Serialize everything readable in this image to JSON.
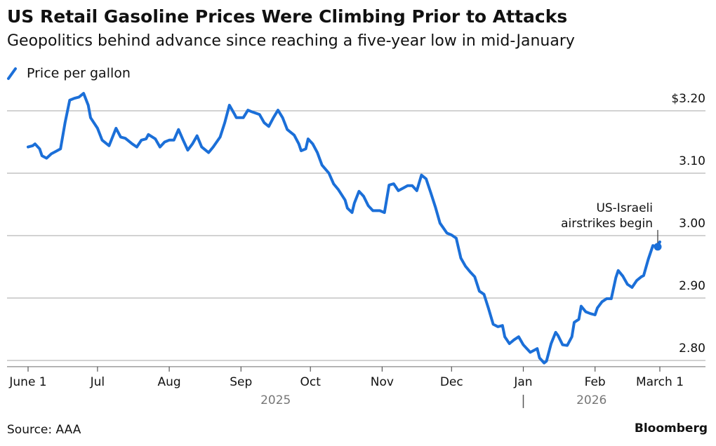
{
  "chart_data": {
    "type": "line",
    "title": "US Retail Gasoline Prices Were Climbing Prior to Attacks",
    "subtitle": "Geopolitics behind advance since reaching a five-year low in mid-January",
    "source": "Source: AAA",
    "brand": "Bloomberg",
    "annotation": [
      "US-Israeli",
      "airstrikes begin"
    ],
    "year_labels": [
      "2025",
      "2026"
    ],
    "grid": true,
    "legend": "top-left",
    "xlim": [
      "2025-06-01",
      "2026-03-01"
    ],
    "xticks": [
      {
        "value": "2025-06-01",
        "label": "June 1"
      },
      {
        "value": "2025-07-01",
        "label": "Jul"
      },
      {
        "value": "2025-08-01",
        "label": "Aug"
      },
      {
        "value": "2025-09-01",
        "label": "Sep"
      },
      {
        "value": "2025-10-01",
        "label": "Oct"
      },
      {
        "value": "2025-11-01",
        "label": "Nov"
      },
      {
        "value": "2025-12-01",
        "label": "Dec"
      },
      {
        "value": "2026-01-01",
        "label": "Jan"
      },
      {
        "value": "2026-02-01",
        "label": "Feb"
      },
      {
        "value": "2026-03-01",
        "label": "March 1"
      }
    ],
    "ylim": [
      2.79,
      3.24
    ],
    "yticks": [
      {
        "value": 3.2,
        "label": "$3.20"
      },
      {
        "value": 3.1,
        "label": "3.10"
      },
      {
        "value": 3.0,
        "label": "3.00"
      },
      {
        "value": 2.9,
        "label": "2.90"
      },
      {
        "value": 2.8,
        "label": "2.80"
      }
    ],
    "x": [
      "2025-06-01",
      "2025-06-03",
      "2025-06-04",
      "2025-06-06",
      "2025-06-07",
      "2025-06-09",
      "2025-06-11",
      "2025-06-13",
      "2025-06-15",
      "2025-06-17",
      "2025-06-19",
      "2025-06-21",
      "2025-06-23",
      "2025-06-25",
      "2025-06-27",
      "2025-06-28",
      "2025-07-01",
      "2025-07-03",
      "2025-07-06",
      "2025-07-09",
      "2025-07-11",
      "2025-07-13",
      "2025-07-16",
      "2025-07-18",
      "2025-07-20",
      "2025-07-22",
      "2025-07-23",
      "2025-07-26",
      "2025-07-28",
      "2025-07-30",
      "2025-08-01",
      "2025-08-03",
      "2025-08-05",
      "2025-08-07",
      "2025-08-09",
      "2025-08-11",
      "2025-08-13",
      "2025-08-15",
      "2025-08-18",
      "2025-08-20",
      "2025-08-23",
      "2025-08-25",
      "2025-08-27",
      "2025-08-29",
      "2025-08-30",
      "2025-09-02",
      "2025-09-04",
      "2025-09-06",
      "2025-09-09",
      "2025-09-11",
      "2025-09-13",
      "2025-09-15",
      "2025-09-17",
      "2025-09-19",
      "2025-09-21",
      "2025-09-24",
      "2025-09-26",
      "2025-09-27",
      "2025-09-29",
      "2025-09-30",
      "2025-10-02",
      "2025-10-04",
      "2025-10-06",
      "2025-10-09",
      "2025-10-11",
      "2025-10-13",
      "2025-10-16",
      "2025-10-17",
      "2025-10-19",
      "2025-10-20",
      "2025-10-22",
      "2025-10-24",
      "2025-10-26",
      "2025-10-28",
      "2025-10-31",
      "2025-11-02",
      "2025-11-04",
      "2025-11-06",
      "2025-11-08",
      "2025-11-10",
      "2025-11-12",
      "2025-11-14",
      "2025-11-16",
      "2025-11-18",
      "2025-11-20",
      "2025-11-22",
      "2025-11-24",
      "2025-11-26",
      "2025-11-29",
      "2025-12-01",
      "2025-12-03",
      "2025-12-05",
      "2025-12-07",
      "2025-12-09",
      "2025-12-11",
      "2025-12-13",
      "2025-12-15",
      "2025-12-17",
      "2025-12-19",
      "2025-12-21",
      "2025-12-23",
      "2025-12-24",
      "2025-12-26",
      "2025-12-28",
      "2025-12-30",
      "2026-01-01",
      "2026-01-02",
      "2026-01-04",
      "2026-01-07",
      "2026-01-08",
      "2026-01-10",
      "2026-01-11",
      "2026-01-13",
      "2026-01-15",
      "2026-01-16",
      "2026-01-18",
      "2026-01-20",
      "2026-01-22",
      "2026-01-23",
      "2026-01-25",
      "2026-01-26",
      "2026-01-28",
      "2026-01-30",
      "2026-02-01",
      "2026-02-02",
      "2026-02-04",
      "2026-02-06",
      "2026-02-08",
      "2026-02-10",
      "2026-02-11",
      "2026-02-13",
      "2026-02-15",
      "2026-02-17",
      "2026-02-19",
      "2026-02-21",
      "2026-02-22",
      "2026-02-24",
      "2026-02-26",
      "2026-02-28",
      "2026-03-01"
    ],
    "series": [
      {
        "name": "Price per gallon",
        "color": "#1b6fd8",
        "values": [
          3.142,
          3.144,
          3.147,
          3.139,
          3.128,
          3.124,
          3.131,
          3.135,
          3.139,
          3.181,
          3.217,
          3.22,
          3.222,
          3.228,
          3.209,
          3.189,
          3.172,
          3.153,
          3.144,
          3.172,
          3.158,
          3.156,
          3.147,
          3.142,
          3.153,
          3.155,
          3.162,
          3.155,
          3.142,
          3.15,
          3.153,
          3.153,
          3.17,
          3.153,
          3.137,
          3.147,
          3.16,
          3.142,
          3.133,
          3.142,
          3.158,
          3.181,
          3.209,
          3.196,
          3.189,
          3.189,
          3.201,
          3.198,
          3.194,
          3.181,
          3.175,
          3.189,
          3.201,
          3.189,
          3.17,
          3.161,
          3.147,
          3.136,
          3.139,
          3.155,
          3.147,
          3.133,
          3.113,
          3.1,
          3.083,
          3.074,
          3.057,
          3.044,
          3.037,
          3.052,
          3.071,
          3.063,
          3.048,
          3.04,
          3.04,
          3.037,
          3.081,
          3.083,
          3.072,
          3.076,
          3.08,
          3.08,
          3.072,
          3.097,
          3.091,
          3.069,
          3.046,
          3.02,
          3.004,
          3.001,
          2.996,
          2.964,
          2.951,
          2.942,
          2.934,
          2.911,
          2.906,
          2.883,
          2.858,
          2.854,
          2.856,
          2.838,
          2.827,
          2.833,
          2.838,
          2.825,
          2.821,
          2.813,
          2.819,
          2.804,
          2.796,
          2.799,
          2.827,
          2.845,
          2.84,
          2.825,
          2.824,
          2.838,
          2.861,
          2.866,
          2.887,
          2.878,
          2.875,
          2.873,
          2.884,
          2.894,
          2.899,
          2.899,
          2.933,
          2.944,
          2.935,
          2.922,
          2.917,
          2.928,
          2.934,
          2.936,
          2.962,
          2.984,
          2.982,
          2.99
        ]
      }
    ]
  }
}
